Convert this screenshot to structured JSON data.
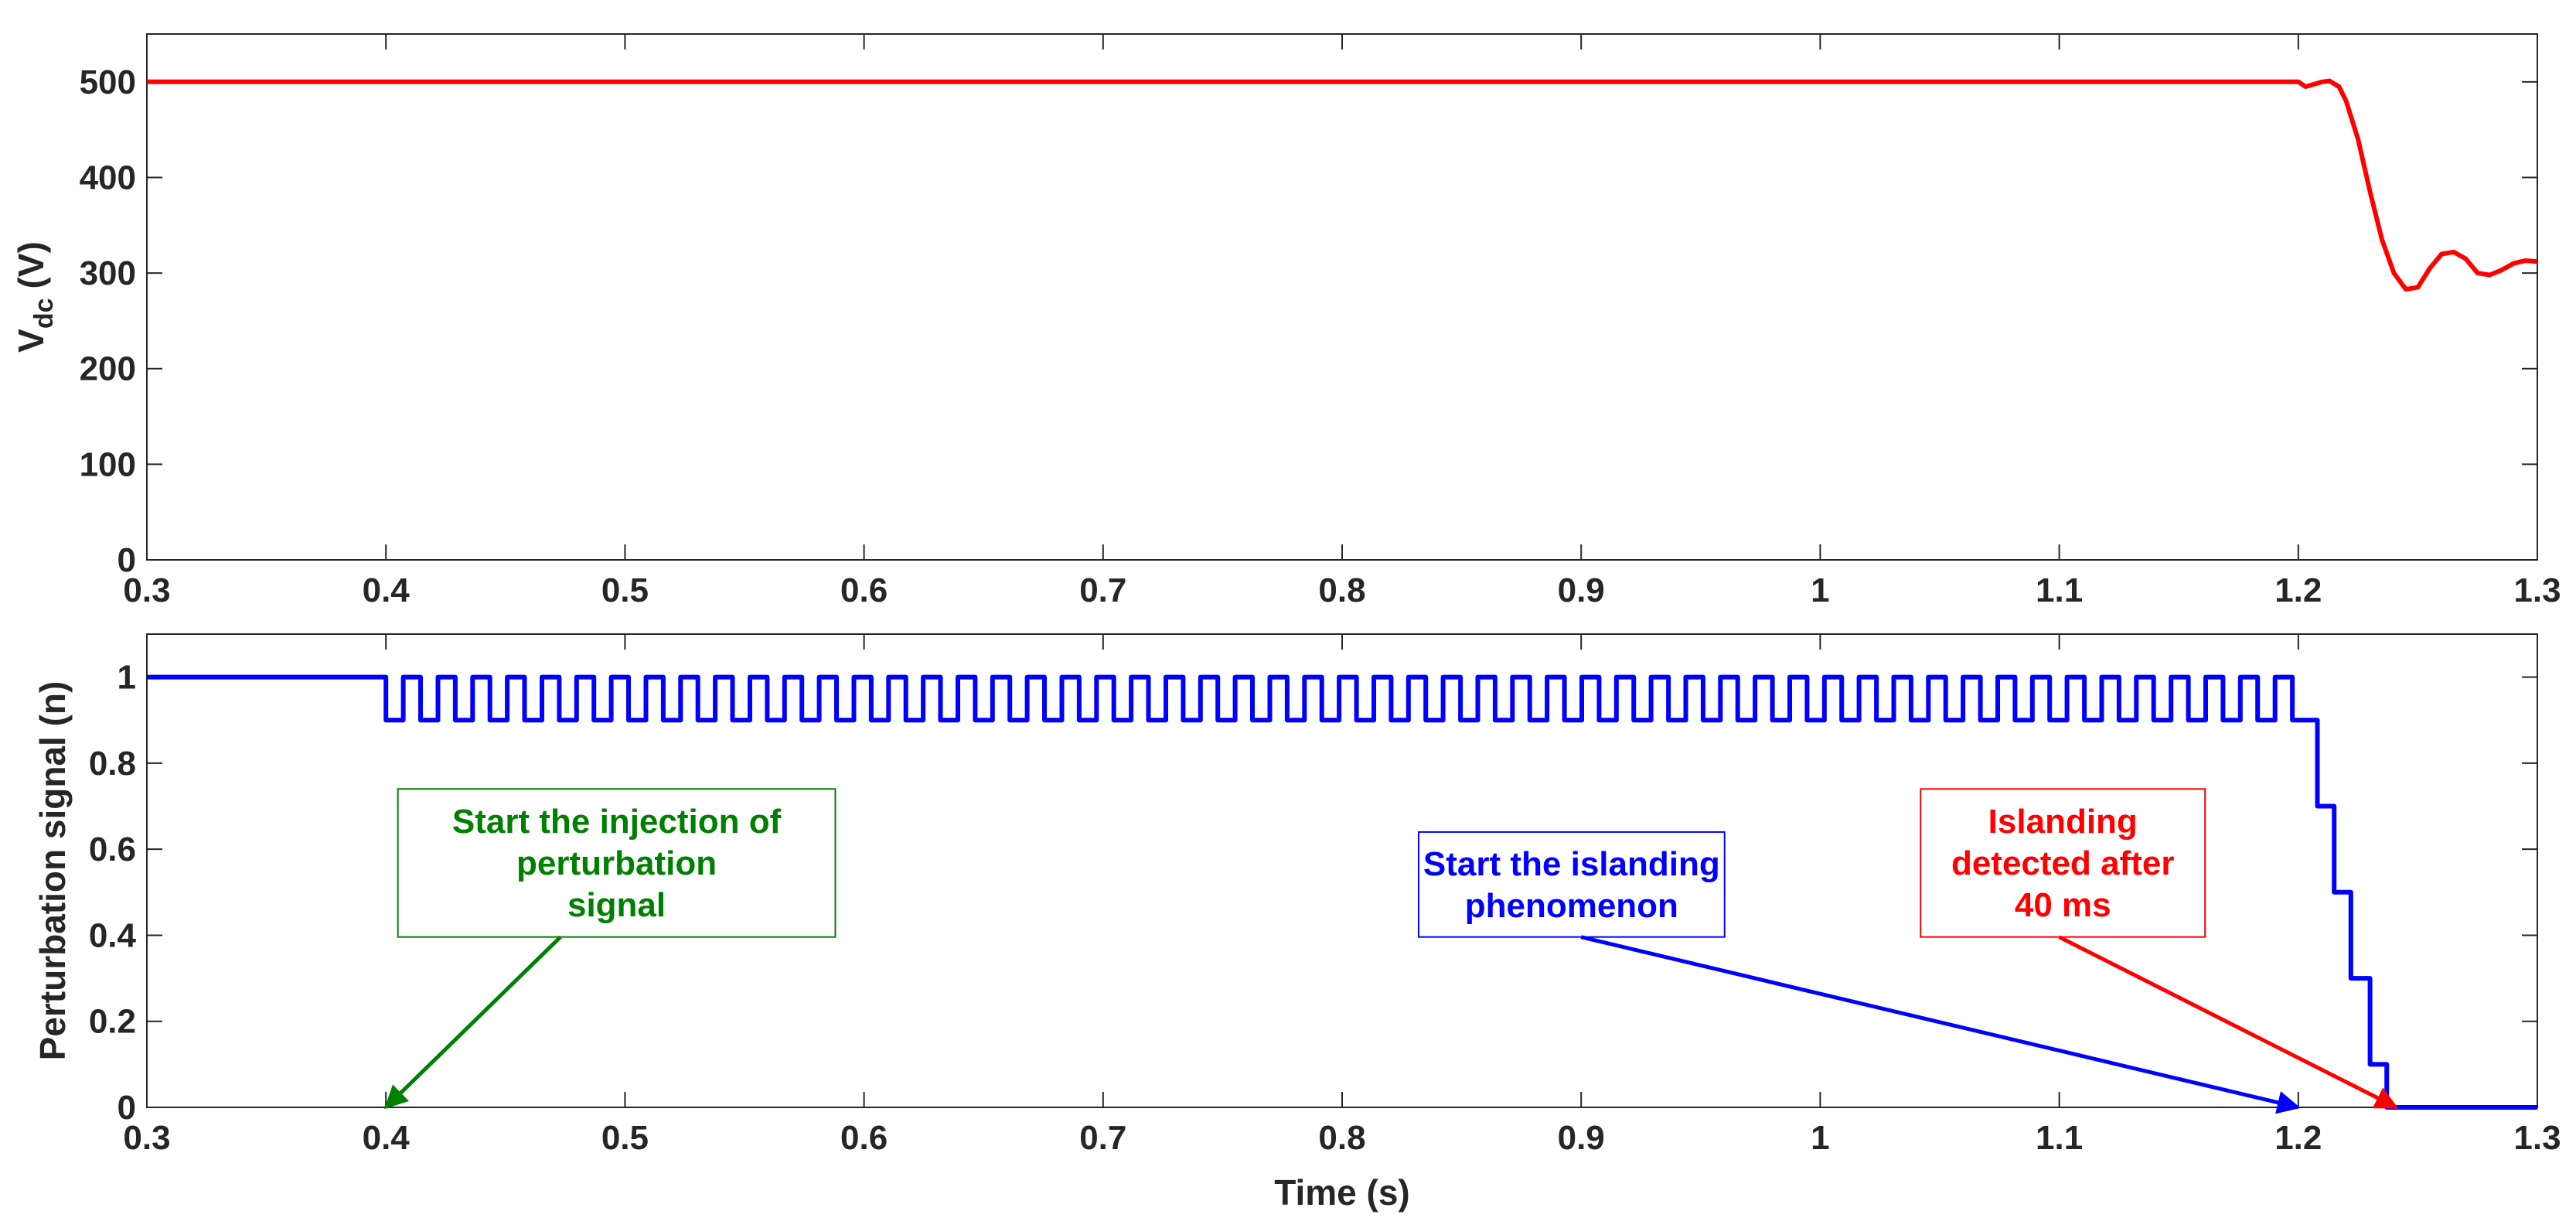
{
  "chart_data": [
    {
      "type": "line",
      "ylabel": "V",
      "ylabel_sub": "dc",
      "ylabel_unit": "(V)",
      "xlim": [
        0.3,
        1.3
      ],
      "ylim": [
        0,
        550
      ],
      "grid": false,
      "x_ticks": [
        0.3,
        0.4,
        0.5,
        0.6,
        0.7,
        0.8,
        0.9,
        1,
        1.1,
        1.2,
        1.3
      ],
      "x_tick_labels": [
        "0.3",
        "0.4",
        "0.5",
        "0.6",
        "0.7",
        "0.8",
        "0.9",
        "1",
        "1.1",
        "1.2",
        "1.3"
      ],
      "y_ticks": [
        0,
        100,
        200,
        300,
        400,
        500
      ],
      "y_tick_labels": [
        "0",
        "100",
        "200",
        "300",
        "400",
        "500"
      ],
      "series": [
        {
          "color": "#ff0000",
          "x": [
            0.3,
            0.4,
            1.2,
            1.203,
            1.206,
            1.21,
            1.213,
            1.217,
            1.22,
            1.225,
            1.23,
            1.235,
            1.24,
            1.245,
            1.25,
            1.255,
            1.26,
            1.265,
            1.27,
            1.275,
            1.28,
            1.285,
            1.29,
            1.295,
            1.3
          ],
          "y": [
            500,
            500,
            500,
            495,
            497,
            500,
            501,
            495,
            480,
            440,
            385,
            335,
            300,
            283,
            285,
            305,
            320,
            322,
            315,
            300,
            298,
            303,
            310,
            313,
            312
          ]
        }
      ]
    },
    {
      "type": "line",
      "xlabel": "Time (s)",
      "ylabel": "Perturbation signal (n)",
      "xlim": [
        0.3,
        1.3
      ],
      "ylim": [
        0,
        1.1
      ],
      "grid": false,
      "x_ticks": [
        0.3,
        0.4,
        0.5,
        0.6,
        0.7,
        0.8,
        0.9,
        1,
        1.1,
        1.2,
        1.3
      ],
      "x_tick_labels": [
        "0.3",
        "0.4",
        "0.5",
        "0.6",
        "0.7",
        "0.8",
        "0.9",
        "1",
        "1.1",
        "1.2",
        "1.3"
      ],
      "y_ticks": [
        0,
        0.2,
        0.4,
        0.6,
        0.8,
        1
      ],
      "y_tick_labels": [
        "0",
        "0.2",
        "0.4",
        "0.6",
        "0.8",
        "1"
      ],
      "series": [
        {
          "color": "#0000ff",
          "step": true,
          "square_wave": {
            "x_start": 0.4,
            "x_end": 1.2,
            "period": 0.0145,
            "high": 1.0,
            "low": 0.9
          },
          "x": [
            0.3,
            0.4,
            1.2,
            1.208,
            1.215,
            1.222,
            1.23,
            1.237,
            1.242,
            1.3
          ],
          "y": [
            1.0,
            1.0,
            0.9,
            0.7,
            0.5,
            0.3,
            0.1,
            0.0,
            0.0,
            0.0
          ]
        }
      ],
      "annotations": [
        {
          "lines": [
            "Start the injection of",
            "perturbation",
            "signal"
          ],
          "color": "#008000",
          "box_x": [
            0.405,
            0.588
          ],
          "box_y": [
            0.396,
            0.74
          ],
          "arrow_tail": [
            0.473,
            0.396
          ],
          "arrow_head": [
            0.4,
            0.0
          ]
        },
        {
          "lines": [
            "Start the islanding",
            "phenomenon"
          ],
          "color": "#0000ff",
          "box_x": [
            0.832,
            0.96
          ],
          "box_y": [
            0.396,
            0.64
          ],
          "arrow_tail": [
            0.9,
            0.396
          ],
          "arrow_head": [
            1.2,
            0.0
          ]
        },
        {
          "lines": [
            "Islanding",
            "detected after",
            "40 ms"
          ],
          "color": "#ff0000",
          "box_x": [
            1.042,
            1.161
          ],
          "box_y": [
            0.396,
            0.74
          ],
          "arrow_tail": [
            1.1,
            0.396
          ],
          "arrow_head": [
            1.241,
            0.0
          ]
        }
      ]
    }
  ]
}
